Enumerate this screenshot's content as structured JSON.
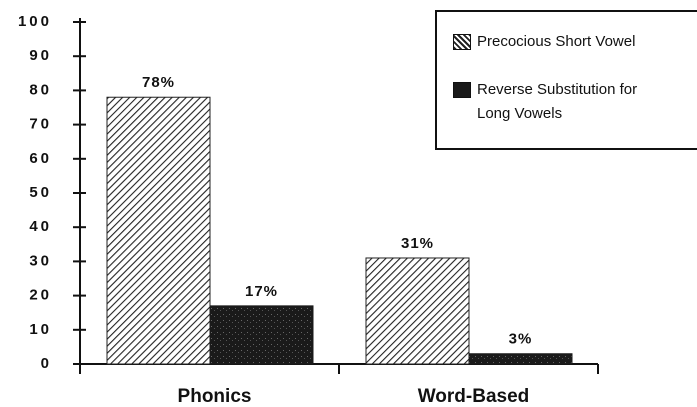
{
  "chart_data": {
    "type": "bar",
    "categories": [
      "Phonics",
      "Word-Based"
    ],
    "series": [
      {
        "name": "Precocious Short Vowel",
        "color": "#222222",
        "values": [
          78,
          31
        ],
        "value_labels": [
          "78%",
          "31%"
        ]
      },
      {
        "name": "Reverse Substitution for Long Vowels",
        "color": "#1a1a1a",
        "values": [
          17,
          3
        ],
        "value_labels": [
          "17%",
          "3%"
        ]
      }
    ],
    "ylim": [
      0,
      100
    ],
    "yticks": [
      0,
      10,
      20,
      30,
      40,
      50,
      60,
      70,
      80,
      90,
      100
    ],
    "legend": "upper right"
  }
}
